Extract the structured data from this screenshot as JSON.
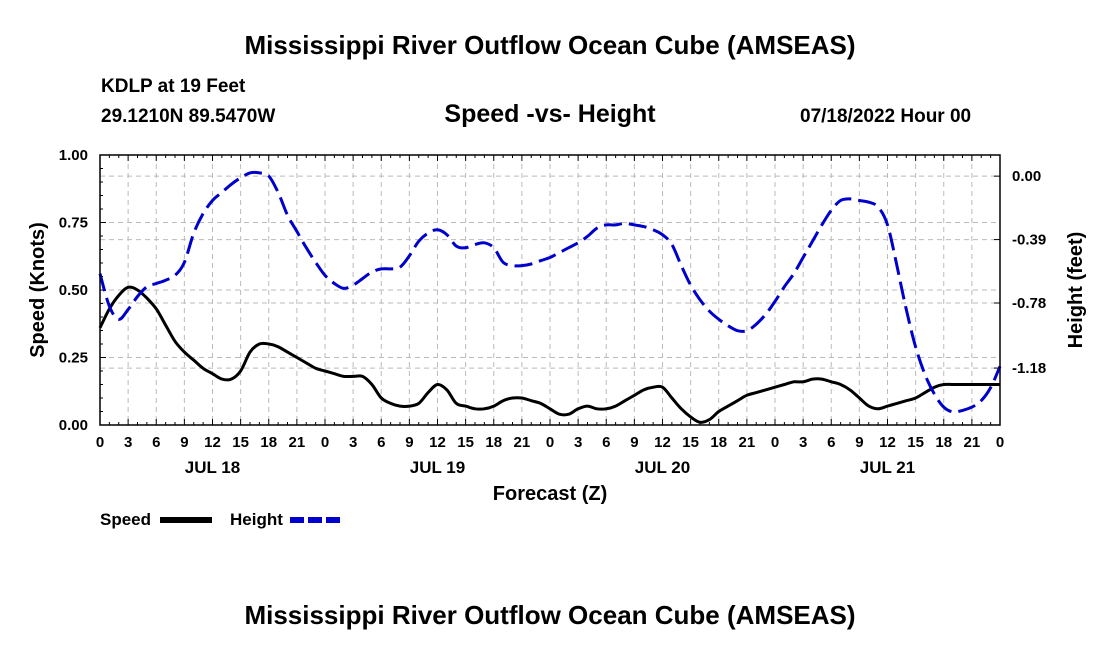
{
  "header": {
    "title": "Mississippi River Outflow Ocean Cube (AMSEAS)",
    "station": "KDLP at 19 Feet",
    "coords": "29.1210N  89.5470W",
    "subtitle": "Speed -vs- Height",
    "datetime": "07/18/2022 Hour 00"
  },
  "footer": {
    "title": "Mississippi River Outflow Ocean Cube (AMSEAS)"
  },
  "chart_data": {
    "type": "line",
    "title": "Speed -vs- Height",
    "xlabel": "Forecast (Z)",
    "ylabel": "Speed (Knots)",
    "y2label": "Height (feet)",
    "xlim": [
      0,
      96
    ],
    "ylim": [
      0,
      1
    ],
    "y2lim": [
      -1.53,
      0.13
    ],
    "x_tick_step": 3,
    "x_tick_labels": [
      "0",
      "3",
      "6",
      "9",
      "12",
      "15",
      "18",
      "21",
      "0",
      "3",
      "6",
      "9",
      "12",
      "15",
      "18",
      "21",
      "0",
      "3",
      "6",
      "9",
      "12",
      "15",
      "18",
      "21",
      "0",
      "3",
      "6",
      "9",
      "12",
      "15",
      "18",
      "21",
      "0"
    ],
    "day_labels": [
      {
        "x": 12,
        "label": "JUL 18"
      },
      {
        "x": 36,
        "label": "JUL 19"
      },
      {
        "x": 60,
        "label": "JUL 20"
      },
      {
        "x": 84,
        "label": "JUL 21"
      }
    ],
    "y_ticks": [
      {
        "value": 0,
        "label": "0.00"
      },
      {
        "value": 0.25,
        "label": "0.25"
      },
      {
        "value": 0.5,
        "label": "0.50"
      },
      {
        "value": 0.75,
        "label": "0.75"
      },
      {
        "value": 1,
        "label": "1.00"
      }
    ],
    "y2_ticks": [
      {
        "value": 0.0,
        "label": "0.00"
      },
      {
        "value": -0.39,
        "label": "-0.39"
      },
      {
        "value": -0.78,
        "label": "-0.78"
      },
      {
        "value": -1.18,
        "label": "-1.18"
      }
    ],
    "grid": true,
    "legend_position": "bottom-left",
    "series": [
      {
        "name": "Speed",
        "axis": "left",
        "color": "#000000",
        "dash": "solid",
        "x": [
          0,
          1,
          2,
          3,
          4,
          5,
          6,
          7,
          8,
          9,
          10,
          11,
          12,
          13,
          14,
          15,
          16,
          17,
          18,
          19,
          20,
          21,
          22,
          23,
          24,
          25,
          26,
          27,
          28,
          29,
          30,
          31,
          32,
          33,
          34,
          35,
          36,
          37,
          38,
          39,
          40,
          41,
          42,
          43,
          44,
          45,
          46,
          47,
          48,
          49,
          50,
          51,
          52,
          53,
          54,
          55,
          56,
          57,
          58,
          59,
          60,
          61,
          62,
          63,
          64,
          65,
          66,
          67,
          68,
          69,
          70,
          71,
          72,
          73,
          74,
          75,
          76,
          77,
          78,
          79,
          80,
          81,
          82,
          83,
          84,
          85,
          86,
          87,
          88,
          89,
          90,
          91,
          92,
          93,
          94,
          95,
          96
        ],
        "values": [
          0.36,
          0.43,
          0.48,
          0.51,
          0.5,
          0.47,
          0.43,
          0.37,
          0.31,
          0.27,
          0.24,
          0.21,
          0.19,
          0.17,
          0.17,
          0.2,
          0.27,
          0.3,
          0.3,
          0.29,
          0.27,
          0.25,
          0.23,
          0.21,
          0.2,
          0.19,
          0.18,
          0.18,
          0.18,
          0.15,
          0.1,
          0.08,
          0.07,
          0.07,
          0.08,
          0.12,
          0.15,
          0.13,
          0.08,
          0.07,
          0.06,
          0.06,
          0.07,
          0.09,
          0.1,
          0.1,
          0.09,
          0.08,
          0.06,
          0.04,
          0.04,
          0.06,
          0.07,
          0.06,
          0.06,
          0.07,
          0.09,
          0.11,
          0.13,
          0.14,
          0.14,
          0.1,
          0.06,
          0.03,
          0.01,
          0.02,
          0.05,
          0.07,
          0.09,
          0.11,
          0.12,
          0.13,
          0.14,
          0.15,
          0.16,
          0.16,
          0.17,
          0.17,
          0.16,
          0.15,
          0.13,
          0.1,
          0.07,
          0.06,
          0.07,
          0.08,
          0.09,
          0.1,
          0.12,
          0.14,
          0.15,
          0.15,
          0.15,
          0.15,
          0.15,
          0.15,
          0.15
        ]
      },
      {
        "name": "Height",
        "axis": "right",
        "color": "#0000cc",
        "dash": "dashed",
        "x": [
          0,
          1,
          2,
          3,
          4,
          5,
          6,
          7,
          8,
          9,
          10,
          11,
          12,
          13,
          14,
          15,
          16,
          17,
          18,
          19,
          20,
          21,
          22,
          23,
          24,
          25,
          26,
          27,
          28,
          29,
          30,
          31,
          32,
          33,
          34,
          35,
          36,
          37,
          38,
          39,
          40,
          41,
          42,
          43,
          44,
          45,
          46,
          47,
          48,
          49,
          50,
          51,
          52,
          53,
          54,
          55,
          56,
          57,
          58,
          59,
          60,
          61,
          62,
          63,
          64,
          65,
          66,
          67,
          68,
          69,
          70,
          71,
          72,
          73,
          74,
          75,
          76,
          77,
          78,
          79,
          80,
          81,
          82,
          83,
          84,
          85,
          86,
          87,
          88,
          89,
          90,
          91,
          92,
          93,
          94,
          95,
          96
        ],
        "values": [
          -0.6,
          -0.8,
          -0.88,
          -0.82,
          -0.74,
          -0.68,
          -0.66,
          -0.64,
          -0.61,
          -0.53,
          -0.35,
          -0.23,
          -0.15,
          -0.1,
          -0.05,
          -0.01,
          0.02,
          0.02,
          0.0,
          -0.1,
          -0.24,
          -0.34,
          -0.44,
          -0.53,
          -0.61,
          -0.66,
          -0.69,
          -0.67,
          -0.63,
          -0.59,
          -0.57,
          -0.57,
          -0.56,
          -0.49,
          -0.4,
          -0.35,
          -0.33,
          -0.36,
          -0.43,
          -0.44,
          -0.42,
          -0.41,
          -0.44,
          -0.53,
          -0.55,
          -0.55,
          -0.54,
          -0.52,
          -0.5,
          -0.47,
          -0.44,
          -0.41,
          -0.37,
          -0.32,
          -0.3,
          -0.3,
          -0.29,
          -0.3,
          -0.31,
          -0.33,
          -0.36,
          -0.42,
          -0.55,
          -0.67,
          -0.76,
          -0.83,
          -0.88,
          -0.92,
          -0.95,
          -0.95,
          -0.91,
          -0.85,
          -0.77,
          -0.68,
          -0.6,
          -0.5,
          -0.4,
          -0.3,
          -0.21,
          -0.15,
          -0.14,
          -0.15,
          -0.16,
          -0.19,
          -0.3,
          -0.55,
          -0.82,
          -1.05,
          -1.22,
          -1.34,
          -1.42,
          -1.45,
          -1.44,
          -1.42,
          -1.38,
          -1.3,
          -1.17
        ]
      }
    ]
  }
}
